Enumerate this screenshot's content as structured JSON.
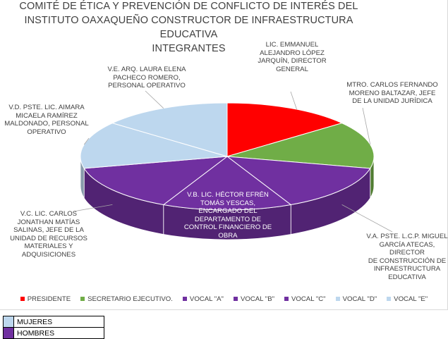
{
  "chart_data": {
    "type": "pie",
    "title_lines": [
      "COMITÉ DE ÉTICA Y PREVENCIÓN DE CONFLICTO DE INTERÉS  DEL",
      "INSTITUTO OAXAQUEÑO CONSTRUCTOR DE INFRAESTRUCTURA",
      "EDUCATIVA",
      "INTEGRANTES"
    ],
    "categories": [
      "PRESIDENTE",
      "SECRETARIO EJECUTIVO.",
      "VOCAL \"A\"",
      "VOCAL \"B\"",
      "VOCAL \"C\"",
      "VOCAL \"D\"",
      "VOCAL \"E\""
    ],
    "values": [
      1,
      1,
      1,
      1,
      1,
      1,
      1
    ],
    "colors": [
      "#ff0000",
      "#70ad47",
      "#7030a0",
      "#7030a0",
      "#7030a0",
      "#bdd7ee",
      "#bdd7ee"
    ],
    "data_labels": [
      "LIC. EMMANUEL\nALEJANDRO LÓPEZ\nJARQUÍN, DIRECTOR\nGENERAL",
      "MTRO. CARLOS FERNANDO\nMORENO BALTAZAR, JEFE\nDE LA UNIDAD JURÍDICA",
      "V.A. PSTE. L.C.P. MIGUEL\nGARCÍA ATECAS, DIRECTOR\nDE CONSTRUCCIÓN DE\nINFRAESTRUCTURA\nEDUCATIVA",
      "V.B. LIC. HÉCTOR EFRÉN\nTOMÁS YESCAS,\nENCARGADO DEL\nDEPARTAMENTO DE\nCONTROL FINANCIERO DE\nOBRA",
      "V.C. LIC. CARLOS\nJONATHAN MATÍAS\nSALINAS, JEFE DE LA\nUNIDAD DE RECURSOS\nMATERIALES Y\nADQUISICIONES",
      "V.D. PSTE. LIC. AIMARA\nMICAELA RAMÍREZ\nMALDONADO, PERSONAL\nOPERATIVO",
      "V.E. ARQ. LAURA ELENA\nPACHECO ROMERO,\nPERSONAL OPERATIVO"
    ],
    "legend_position": "bottom",
    "style": "3d-pie"
  },
  "key_table": [
    {
      "color": "#bdd7ee",
      "label": "MUJERES"
    },
    {
      "color": "#7030a0",
      "label": "HOMBRES"
    }
  ]
}
